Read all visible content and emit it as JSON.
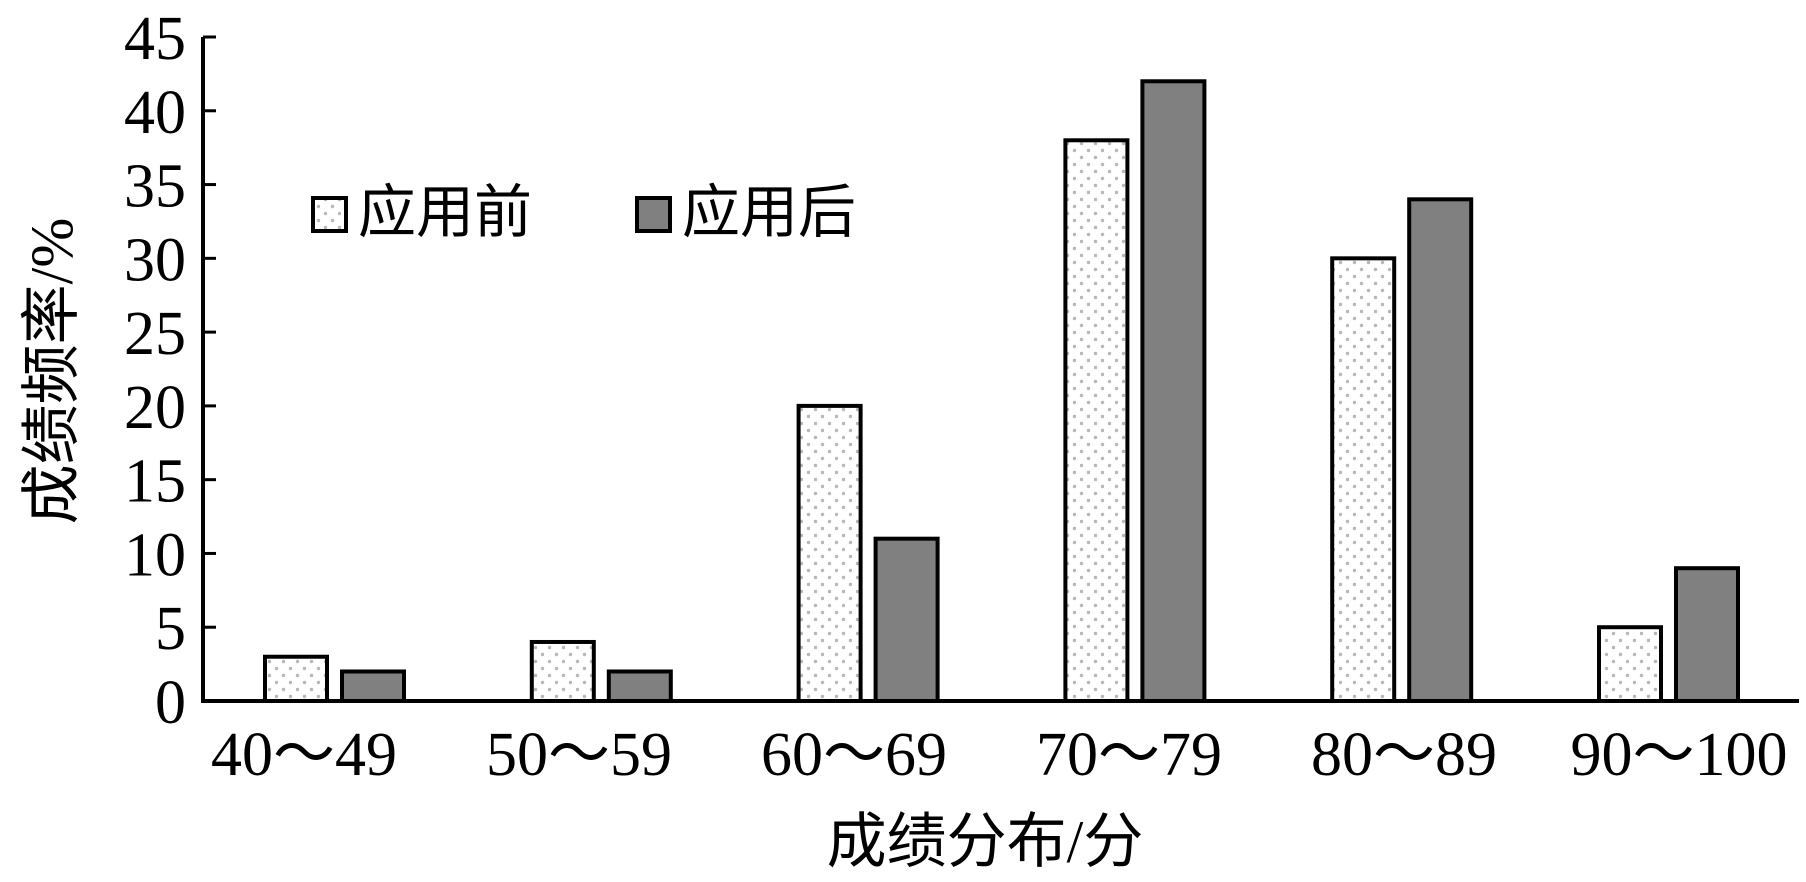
{
  "chart_data": {
    "type": "bar",
    "categories": [
      "40～49",
      "50～59",
      "60～69",
      "70～79",
      "80～89",
      "90～100"
    ],
    "series": [
      {
        "name": "应用前",
        "values": [
          3,
          4,
          20,
          38,
          30,
          5
        ],
        "color": "#ffffff",
        "dot_color": "#b8b8b8"
      },
      {
        "name": "应用后",
        "values": [
          2,
          2,
          11,
          42,
          34,
          9
        ],
        "color": "#808080"
      }
    ],
    "xlabel": "成绩分布/分",
    "ylabel": "成绩频率/%",
    "ylim": [
      0,
      45
    ],
    "yticks": [
      0,
      5,
      10,
      15,
      20,
      25,
      30,
      35,
      40,
      45
    ],
    "grid": false,
    "legend": "top-left"
  }
}
